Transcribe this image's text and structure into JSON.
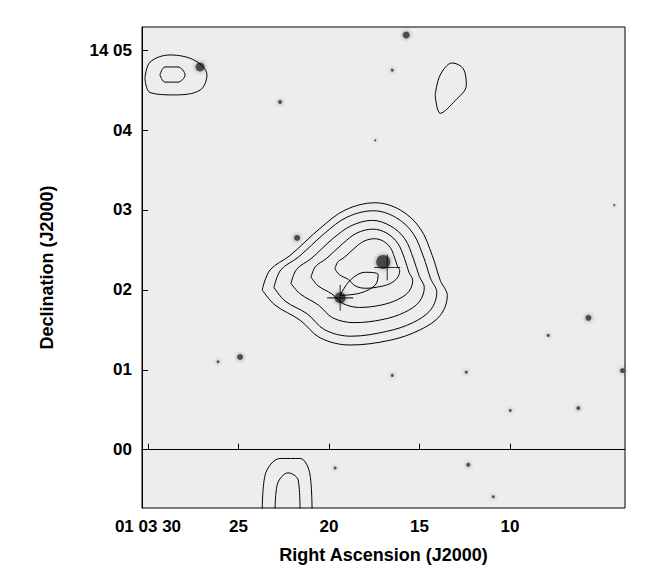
{
  "chart_data": {
    "type": "contour",
    "x_label": "Right Ascension (J2000)",
    "y_label": "Declination (J2000)",
    "xlim": [
      30.33,
      3.64
    ],
    "xticks": [
      {
        "value": 30,
        "label": "01 03 30"
      },
      25,
      20,
      15,
      10
    ],
    "ylim": [
      -0.73,
      5.29
    ],
    "yticks": [
      {
        "value": 0,
        "label": "00"
      },
      {
        "value": 1,
        "label": "01"
      },
      {
        "value": 2,
        "label": "02"
      },
      {
        "value": 3,
        "label": "03"
      },
      {
        "value": 4,
        "label": "04"
      },
      {
        "value": 5,
        "label": "14 05"
      }
    ],
    "grid": false,
    "color": "#000000",
    "contours": [
      [
        [
          23.69,
          2.0
        ],
        [
          23.25,
          2.25
        ],
        [
          22.15,
          2.43
        ],
        [
          20.49,
          2.77
        ],
        [
          19.1,
          3.0
        ],
        [
          17.44,
          3.09
        ],
        [
          16.06,
          3.0
        ],
        [
          14.96,
          2.77
        ],
        [
          14.29,
          2.43
        ],
        [
          13.85,
          2.12
        ],
        [
          13.46,
          1.93
        ],
        [
          13.85,
          1.68
        ],
        [
          14.96,
          1.5
        ],
        [
          16.62,
          1.37
        ],
        [
          18.83,
          1.31
        ],
        [
          20.49,
          1.4
        ],
        [
          21.59,
          1.62
        ],
        [
          22.98,
          1.81
        ],
        [
          23.69,
          2.0
        ]
      ],
      [
        [
          23.04,
          2.03
        ],
        [
          22.66,
          2.25
        ],
        [
          21.69,
          2.41
        ],
        [
          20.23,
          2.71
        ],
        [
          19.0,
          2.91
        ],
        [
          17.54,
          2.99
        ],
        [
          16.33,
          2.91
        ],
        [
          15.36,
          2.71
        ],
        [
          14.77,
          2.41
        ],
        [
          14.38,
          2.14
        ],
        [
          14.04,
          1.97
        ],
        [
          14.38,
          1.75
        ],
        [
          15.36,
          1.59
        ],
        [
          16.82,
          1.48
        ],
        [
          18.77,
          1.42
        ],
        [
          20.23,
          1.5
        ],
        [
          21.2,
          1.7
        ],
        [
          22.42,
          1.86
        ],
        [
          23.04,
          2.03
        ]
      ],
      [
        [
          22.1,
          2.08
        ],
        [
          21.78,
          2.26
        ],
        [
          20.99,
          2.39
        ],
        [
          19.79,
          2.64
        ],
        [
          18.79,
          2.8
        ],
        [
          17.6,
          2.87
        ],
        [
          16.6,
          2.8
        ],
        [
          15.81,
          2.64
        ],
        [
          15.33,
          2.39
        ],
        [
          15.01,
          2.17
        ],
        [
          14.73,
          2.03
        ],
        [
          15.01,
          1.85
        ],
        [
          15.81,
          1.72
        ],
        [
          17.01,
          1.63
        ],
        [
          18.6,
          1.59
        ],
        [
          19.79,
          1.65
        ],
        [
          20.58,
          1.81
        ],
        [
          21.59,
          1.95
        ],
        [
          22.1,
          2.08
        ]
      ],
      [
        [
          20.99,
          2.16
        ],
        [
          20.75,
          2.29
        ],
        [
          20.15,
          2.39
        ],
        [
          19.23,
          2.58
        ],
        [
          18.47,
          2.71
        ],
        [
          17.56,
          2.76
        ],
        [
          16.8,
          2.71
        ],
        [
          16.19,
          2.58
        ],
        [
          15.82,
          2.39
        ],
        [
          15.58,
          2.22
        ],
        [
          15.37,
          2.12
        ],
        [
          15.58,
          1.98
        ],
        [
          16.19,
          1.88
        ],
        [
          17.11,
          1.81
        ],
        [
          18.32,
          1.78
        ],
        [
          19.23,
          1.83
        ],
        [
          19.84,
          1.95
        ],
        [
          20.6,
          2.05
        ],
        [
          20.99,
          2.16
        ]
      ],
      [
        [
          19.67,
          2.26
        ],
        [
          19.51,
          2.35
        ],
        [
          19.13,
          2.41
        ],
        [
          18.55,
          2.53
        ],
        [
          18.06,
          2.61
        ],
        [
          17.48,
          2.64
        ],
        [
          17.0,
          2.61
        ],
        [
          16.61,
          2.53
        ],
        [
          16.38,
          2.41
        ],
        [
          16.22,
          2.3
        ],
        [
          16.09,
          2.24
        ],
        [
          16.22,
          2.15
        ],
        [
          16.61,
          2.08
        ],
        [
          17.19,
          2.04
        ],
        [
          17.97,
          2.02
        ],
        [
          18.55,
          2.05
        ],
        [
          18.93,
          2.13
        ],
        [
          19.42,
          2.19
        ],
        [
          19.67,
          2.26
        ]
      ],
      [
        [
          19.38,
          1.93
        ],
        [
          18.83,
          2.12
        ],
        [
          18.0,
          2.22
        ],
        [
          17.28,
          2.19
        ],
        [
          17.44,
          2.06
        ],
        [
          18.27,
          1.96
        ],
        [
          19.38,
          1.93
        ]
      ],
      [
        [
          30.17,
          4.65
        ],
        [
          29.89,
          4.85
        ],
        [
          28.78,
          4.94
        ],
        [
          27.4,
          4.87
        ],
        [
          26.74,
          4.69
        ],
        [
          27.12,
          4.5
        ],
        [
          28.51,
          4.44
        ],
        [
          29.89,
          4.47
        ],
        [
          30.17,
          4.65
        ]
      ],
      [
        [
          29.34,
          4.69
        ],
        [
          29.06,
          4.79
        ],
        [
          28.34,
          4.79
        ],
        [
          27.95,
          4.69
        ],
        [
          28.34,
          4.6
        ],
        [
          29.06,
          4.6
        ],
        [
          29.34,
          4.69
        ]
      ],
      [
        [
          14.13,
          4.44
        ],
        [
          13.85,
          4.69
        ],
        [
          13.19,
          4.84
        ],
        [
          12.58,
          4.77
        ],
        [
          12.41,
          4.56
        ],
        [
          13.02,
          4.37
        ],
        [
          13.85,
          4.21
        ],
        [
          14.13,
          4.44
        ]
      ],
      [
        [
          23.69,
          -0.8
        ],
        [
          23.53,
          -0.32
        ],
        [
          22.7,
          -0.11
        ],
        [
          21.59,
          -0.11
        ],
        [
          21.04,
          -0.32
        ],
        [
          20.93,
          -0.8
        ]
      ],
      [
        [
          22.98,
          -0.8
        ],
        [
          22.86,
          -0.44
        ],
        [
          22.26,
          -0.29
        ],
        [
          21.7,
          -0.38
        ],
        [
          21.59,
          -0.8
        ]
      ]
    ],
    "sources": {
      "x": [
        27.12,
        15.73,
        16.5,
        22.7,
        21.76,
        24.91,
        26.13,
        5.66,
        7.88,
        12.41,
        16.5,
        6.22,
        9.98,
        3.78,
        12.3,
        10.92,
        19.66,
        4.23,
        17.44,
        17.0,
        19.38
      ],
      "y": [
        4.79,
        5.19,
        4.75,
        4.35,
        2.65,
        1.16,
        1.1,
        1.65,
        1.43,
        0.97,
        0.93,
        0.52,
        0.49,
        0.99,
        -0.19,
        -0.59,
        -0.23,
        3.06,
        3.87,
        2.35,
        1.9
      ],
      "size": [
        9,
        7,
        3,
        4,
        6,
        6,
        3,
        6,
        3,
        3,
        3,
        4,
        3,
        5,
        4,
        3,
        3,
        2,
        2,
        14,
        11
      ]
    },
    "crosses": {
      "x": [
        16.78,
        19.38
      ],
      "y": [
        2.28,
        1.9
      ],
      "marker": "cross"
    }
  }
}
